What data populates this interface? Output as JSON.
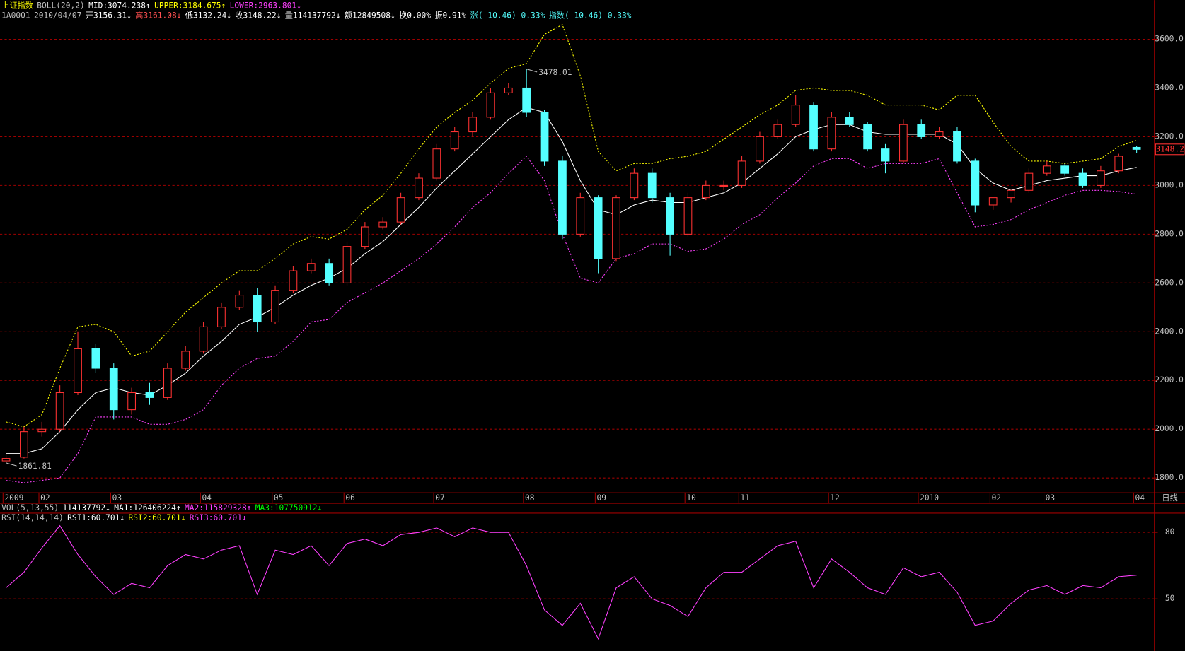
{
  "chart_data": {
    "type": "candlestick",
    "header": {
      "line1": [
        {
          "text": "上证指数",
          "color": "#ffff00"
        },
        {
          "text": "BOLL(20,2)",
          "color": "#c0c0c0"
        },
        {
          "text": "MID:3074.238↑",
          "color": "#ffffff"
        },
        {
          "text": "UPPER:3184.675↑",
          "color": "#ffff00"
        },
        {
          "text": "LOWER:2963.801↓",
          "color": "#ff40ff"
        }
      ],
      "line2": [
        {
          "text": "1A0001",
          "color": "#c0c0c0"
        },
        {
          "text": "2010/04/07",
          "color": "#c0c0c0"
        },
        {
          "text": "开3156.31↓",
          "color": "#ffffff"
        },
        {
          "text": "高3161.08↓",
          "color": "#ff5050"
        },
        {
          "text": "低3132.24↓",
          "color": "#ffffff"
        },
        {
          "text": "收3148.22↓",
          "color": "#ffffff"
        },
        {
          "text": "量114137792↓",
          "color": "#ffffff"
        },
        {
          "text": "额12849508↓",
          "color": "#ffffff"
        },
        {
          "text": "换0.00%",
          "color": "#ffffff"
        },
        {
          "text": "振0.91%",
          "color": "#ffffff"
        },
        {
          "text": "涨(-10.46)-0.33%",
          "color": "#54ffff"
        },
        {
          "text": "指数(-10.46)-0.33%",
          "color": "#54ffff"
        }
      ],
      "vol": [
        {
          "text": "VOL(5,13,55)",
          "color": "#c0c0c0"
        },
        {
          "text": "114137792↓",
          "color": "#ffffff"
        },
        {
          "text": "MA1:126406224↑",
          "color": "#ffffff"
        },
        {
          "text": "MA2:115829328↑",
          "color": "#ff40ff"
        },
        {
          "text": "MA3:107750912↓",
          "color": "#00ff00"
        }
      ],
      "rsi": [
        {
          "text": "RSI(14,14,14)",
          "color": "#c0c0c0"
        },
        {
          "text": "RSI1:60.701↓",
          "color": "#ffffff"
        },
        {
          "text": "RSI2:60.701↓",
          "color": "#ffff00"
        },
        {
          "text": "RSI3:60.701↓",
          "color": "#ff40ff"
        }
      ]
    },
    "categories": [
      "2009",
      null,
      "02",
      null,
      null,
      null,
      "03",
      null,
      null,
      null,
      null,
      "04",
      null,
      null,
      null,
      "05",
      null,
      null,
      null,
      "06",
      null,
      null,
      null,
      null,
      "07",
      null,
      null,
      null,
      null,
      "08",
      null,
      null,
      null,
      "09",
      null,
      null,
      null,
      null,
      "10",
      null,
      null,
      "11",
      null,
      null,
      null,
      null,
      "12",
      null,
      null,
      null,
      null,
      "2010",
      null,
      null,
      null,
      "02",
      null,
      null,
      "03",
      null,
      null,
      null,
      null,
      "04"
    ],
    "period_label": "日线",
    "open": [
      1870,
      1885,
      1990,
      2000,
      2150,
      2330,
      2250,
      2080,
      2150,
      2130,
      2250,
      2320,
      2420,
      2500,
      2550,
      2440,
      2570,
      2650,
      2680,
      2600,
      2750,
      2830,
      2850,
      2950,
      3030,
      3150,
      3220,
      3280,
      3380,
      3400,
      3300,
      3100,
      2800,
      2950,
      2700,
      2950,
      3050,
      2950,
      2800,
      2950,
      3000,
      3000,
      3100,
      3200,
      3250,
      3330,
      3150,
      3280,
      3250,
      3150,
      3100,
      3250,
      3200,
      3220,
      3100,
      2920,
      2950,
      2980,
      3050,
      3080,
      3050,
      3000,
      3060,
      3156.31
    ],
    "high": [
      1900,
      2010,
      2030,
      2180,
      2400,
      2350,
      2270,
      2170,
      2190,
      2270,
      2340,
      2440,
      2520,
      2570,
      2580,
      2590,
      2670,
      2700,
      2700,
      2770,
      2850,
      2870,
      2970,
      3050,
      3170,
      3240,
      3300,
      3400,
      3420,
      3478.01,
      3310,
      3120,
      2970,
      2960,
      2960,
      3070,
      3070,
      2970,
      2970,
      3020,
      3020,
      3120,
      3220,
      3270,
      3370,
      3340,
      3300,
      3300,
      3260,
      3170,
      3270,
      3270,
      3240,
      3240,
      3110,
      2950,
      2970,
      3070,
      3100,
      3090,
      3070,
      3080,
      3130,
      3161.08
    ],
    "low": [
      1861.81,
      1880,
      1970,
      1990,
      2140,
      2230,
      2040,
      2060,
      2100,
      2120,
      2240,
      2310,
      2410,
      2490,
      2400,
      2430,
      2560,
      2640,
      2590,
      2590,
      2740,
      2820,
      2840,
      2940,
      3020,
      3140,
      3200,
      3270,
      3370,
      3280,
      3080,
      2780,
      2790,
      2640,
      2690,
      2940,
      2930,
      2712,
      2790,
      2940,
      2980,
      2990,
      3090,
      3190,
      3240,
      3140,
      3140,
      3240,
      3140,
      3050,
      3090,
      3190,
      3190,
      3090,
      2890,
      2900,
      2930,
      2970,
      3040,
      3040,
      2990,
      2990,
      3050,
      3132.24
    ],
    "close": [
      1880,
      1990,
      2000,
      2150,
      2330,
      2250,
      2080,
      2150,
      2130,
      2250,
      2320,
      2420,
      2500,
      2550,
      2440,
      2570,
      2650,
      2680,
      2600,
      2750,
      2830,
      2850,
      2950,
      3030,
      3150,
      3220,
      3280,
      3380,
      3400,
      3300,
      3100,
      2800,
      2950,
      2700,
      2950,
      3050,
      2950,
      2800,
      2950,
      3000,
      3000,
      3100,
      3200,
      3250,
      3330,
      3150,
      3280,
      3250,
      3150,
      3100,
      3250,
      3200,
      3220,
      3100,
      2920,
      2950,
      2980,
      3050,
      3080,
      3050,
      3000,
      3060,
      3120,
      3148.22
    ],
    "up_color": "#ff3232",
    "down_color": "#54ffff",
    "boll": {
      "mid": [
        1900,
        1900,
        1920,
        1990,
        2080,
        2150,
        2170,
        2150,
        2140,
        2180,
        2230,
        2300,
        2360,
        2430,
        2460,
        2500,
        2550,
        2590,
        2620,
        2660,
        2720,
        2770,
        2840,
        2910,
        2990,
        3060,
        3130,
        3200,
        3270,
        3320,
        3300,
        3180,
        3020,
        2900,
        2880,
        2920,
        2940,
        2930,
        2930,
        2950,
        2970,
        3010,
        3070,
        3130,
        3200,
        3230,
        3250,
        3250,
        3220,
        3210,
        3210,
        3210,
        3210,
        3170,
        3070,
        3010,
        2980,
        3000,
        3020,
        3030,
        3040,
        3040,
        3060,
        3074.238
      ],
      "upper": [
        2030,
        2010,
        2060,
        2250,
        2420,
        2430,
        2400,
        2300,
        2320,
        2400,
        2480,
        2540,
        2600,
        2650,
        2650,
        2700,
        2760,
        2790,
        2780,
        2820,
        2900,
        2960,
        3050,
        3150,
        3240,
        3300,
        3350,
        3420,
        3480,
        3500,
        3620,
        3660,
        3450,
        3140,
        3060,
        3090,
        3090,
        3110,
        3120,
        3140,
        3190,
        3240,
        3290,
        3330,
        3390,
        3400,
        3390,
        3390,
        3370,
        3330,
        3330,
        3330,
        3310,
        3370,
        3370,
        3260,
        3160,
        3100,
        3100,
        3090,
        3100,
        3110,
        3160,
        3184.675
      ],
      "lower": [
        1790,
        1780,
        1790,
        1800,
        1900,
        2050,
        2050,
        2050,
        2020,
        2020,
        2040,
        2080,
        2180,
        2250,
        2290,
        2300,
        2360,
        2440,
        2450,
        2520,
        2560,
        2600,
        2650,
        2700,
        2760,
        2830,
        2910,
        2970,
        3050,
        3120,
        3020,
        2800,
        2620,
        2600,
        2700,
        2720,
        2760,
        2760,
        2730,
        2740,
        2780,
        2840,
        2880,
        2950,
        3010,
        3080,
        3110,
        3110,
        3070,
        3090,
        3090,
        3090,
        3110,
        2970,
        2830,
        2840,
        2860,
        2900,
        2930,
        2960,
        2980,
        2980,
        2975,
        2963.801
      ],
      "mid_color": "#ffffff",
      "upper_color": "#ffff00",
      "lower_color": "#ff40ff"
    },
    "annotations": [
      {
        "value": 3478.01,
        "index": 29
      },
      {
        "value": 1861.81,
        "index": 0
      }
    ],
    "last_price_label": "3148.2",
    "ylim": [
      1747,
      3674
    ],
    "yticks": [
      {
        "value": 1800,
        "label": "1800.0"
      },
      {
        "value": 2000,
        "label": "2000.0"
      },
      {
        "value": 2200,
        "label": "2200.0"
      },
      {
        "value": 2400,
        "label": "2400.0"
      },
      {
        "value": 2600,
        "label": "2600.0"
      },
      {
        "value": 2800,
        "label": "2800.0"
      },
      {
        "value": 3000,
        "label": "3000.0"
      },
      {
        "value": 3200,
        "label": "3200.0"
      },
      {
        "value": 3400,
        "label": "3400.0"
      },
      {
        "value": 3600,
        "label": "3600.0"
      }
    ],
    "grid": true,
    "rsi": {
      "values": [
        55,
        62,
        73,
        83,
        70,
        60,
        52,
        57,
        55,
        65,
        70,
        68,
        72,
        74,
        52,
        72,
        70,
        74,
        65,
        75,
        77,
        74,
        79,
        80,
        82,
        78,
        82,
        80,
        80,
        65,
        45,
        38,
        48,
        32,
        55,
        60,
        50,
        47,
        42,
        55,
        62,
        62,
        68,
        74,
        76,
        55,
        68,
        62,
        55,
        52,
        64,
        60,
        62,
        53,
        38,
        40,
        48,
        54,
        56,
        52,
        56,
        55,
        60,
        60.701
      ],
      "color": "#ff40ff",
      "ylim": [
        26.5,
        88.5
      ],
      "yticks": [
        50,
        80
      ]
    }
  }
}
